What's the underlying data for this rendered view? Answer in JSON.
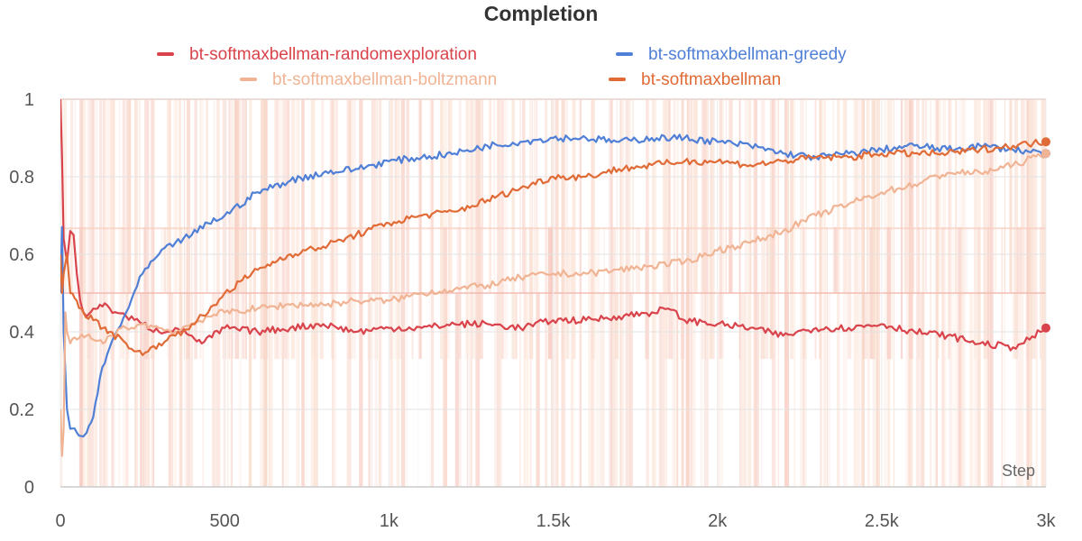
{
  "chart_data": {
    "type": "line",
    "title": "Completion",
    "xlabel": "Step",
    "ylabel": "",
    "xlim": [
      0,
      3000
    ],
    "ylim": [
      0,
      1
    ],
    "x_ticks": [
      0,
      500,
      1000,
      1500,
      2000,
      2500,
      3000
    ],
    "x_tick_labels": [
      "0",
      "500",
      "1k",
      "1.5k",
      "2k",
      "2.5k",
      "3k"
    ],
    "y_ticks": [
      0,
      0.2,
      0.4,
      0.6,
      0.8,
      1
    ],
    "y_tick_labels": [
      "0",
      "0.2",
      "0.4",
      "0.6",
      "0.8",
      "1"
    ],
    "grid": true,
    "legend_position": "top",
    "series": [
      {
        "name": "bt-softmaxbellman-randomexploration",
        "color": "#d9434b",
        "x": [
          0,
          5,
          10,
          20,
          30,
          40,
          50,
          60,
          70,
          80,
          100,
          120,
          150,
          200,
          250,
          300,
          350,
          400,
          430,
          500,
          600,
          700,
          800,
          900,
          1000,
          1100,
          1200,
          1300,
          1400,
          1500,
          1600,
          1700,
          1800,
          1850,
          1900,
          2000,
          2100,
          2200,
          2300,
          2400,
          2500,
          2600,
          2700,
          2800,
          2900,
          2950,
          3000
        ],
        "y": [
          1.0,
          0.85,
          0.64,
          0.58,
          0.66,
          0.65,
          0.55,
          0.48,
          0.45,
          0.44,
          0.46,
          0.47,
          0.46,
          0.44,
          0.42,
          0.4,
          0.41,
          0.39,
          0.37,
          0.41,
          0.4,
          0.41,
          0.42,
          0.4,
          0.41,
          0.41,
          0.42,
          0.42,
          0.41,
          0.43,
          0.43,
          0.44,
          0.45,
          0.46,
          0.43,
          0.42,
          0.41,
          0.39,
          0.41,
          0.41,
          0.42,
          0.4,
          0.39,
          0.37,
          0.36,
          0.38,
          0.41
        ]
      },
      {
        "name": "bt-softmaxbellman-greedy",
        "color": "#4f7fd6",
        "x": [
          0,
          5,
          10,
          20,
          30,
          50,
          70,
          80,
          100,
          120,
          150,
          200,
          250,
          300,
          350,
          400,
          450,
          500,
          600,
          700,
          800,
          900,
          1000,
          1100,
          1200,
          1300,
          1400,
          1500,
          1600,
          1700,
          1800,
          1900,
          2000,
          2100,
          2200,
          2300,
          2400,
          2500,
          2600,
          2700,
          2800,
          2900,
          3000
        ],
        "y": [
          0.5,
          0.67,
          0.4,
          0.2,
          0.15,
          0.14,
          0.13,
          0.14,
          0.18,
          0.28,
          0.36,
          0.45,
          0.55,
          0.6,
          0.63,
          0.65,
          0.68,
          0.7,
          0.76,
          0.79,
          0.81,
          0.82,
          0.84,
          0.85,
          0.86,
          0.88,
          0.89,
          0.9,
          0.9,
          0.89,
          0.9,
          0.9,
          0.89,
          0.88,
          0.86,
          0.85,
          0.86,
          0.87,
          0.88,
          0.87,
          0.88,
          0.87,
          0.86
        ]
      },
      {
        "name": "bt-softmaxbellman-boltzmann",
        "color": "#f0b494",
        "x": [
          0,
          5,
          10,
          15,
          20,
          30,
          50,
          80,
          100,
          130,
          150,
          200,
          250,
          300,
          350,
          400,
          450,
          500,
          600,
          700,
          800,
          900,
          1000,
          1100,
          1200,
          1300,
          1400,
          1500,
          1600,
          1700,
          1800,
          1900,
          2000,
          2100,
          2200,
          2300,
          2400,
          2500,
          2600,
          2700,
          2800,
          2900,
          3000
        ],
        "y": [
          0.2,
          0.08,
          0.15,
          0.45,
          0.4,
          0.37,
          0.38,
          0.39,
          0.38,
          0.37,
          0.39,
          0.41,
          0.42,
          0.41,
          0.4,
          0.42,
          0.44,
          0.45,
          0.46,
          0.47,
          0.47,
          0.48,
          0.48,
          0.5,
          0.51,
          0.52,
          0.54,
          0.55,
          0.55,
          0.56,
          0.57,
          0.58,
          0.61,
          0.63,
          0.66,
          0.7,
          0.73,
          0.76,
          0.78,
          0.81,
          0.81,
          0.83,
          0.86
        ]
      },
      {
        "name": "bt-softmaxbellman",
        "color": "#e06b36",
        "x": [
          0,
          5,
          10,
          20,
          30,
          50,
          70,
          100,
          130,
          150,
          200,
          250,
          300,
          350,
          400,
          450,
          500,
          600,
          700,
          800,
          900,
          1000,
          1100,
          1200,
          1300,
          1400,
          1500,
          1600,
          1700,
          1800,
          1900,
          2000,
          2100,
          2200,
          2300,
          2400,
          2500,
          2600,
          2700,
          2800,
          2900,
          3000
        ],
        "y": [
          0.6,
          0.5,
          0.55,
          0.6,
          0.5,
          0.48,
          0.45,
          0.43,
          0.41,
          0.4,
          0.37,
          0.34,
          0.37,
          0.39,
          0.42,
          0.45,
          0.5,
          0.56,
          0.6,
          0.62,
          0.65,
          0.68,
          0.7,
          0.71,
          0.74,
          0.77,
          0.8,
          0.8,
          0.82,
          0.83,
          0.84,
          0.84,
          0.83,
          0.84,
          0.85,
          0.85,
          0.86,
          0.86,
          0.86,
          0.87,
          0.88,
          0.89
        ]
      }
    ]
  }
}
